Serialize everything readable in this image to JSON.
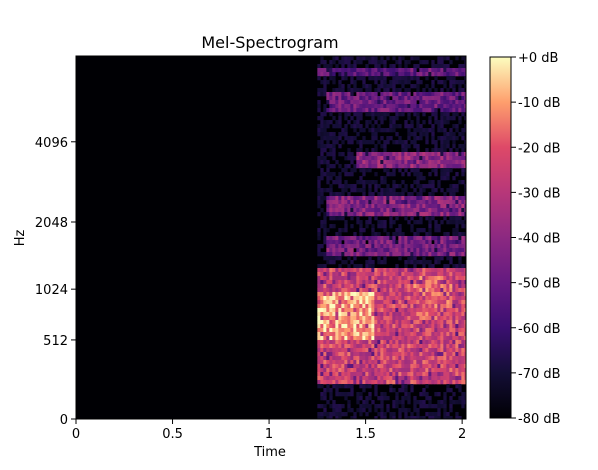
{
  "chart_data": {
    "type": "heatmap",
    "title": "Mel-Spectrogram",
    "xlabel": "Time",
    "ylabel": "Hz",
    "x_ticks": [
      {
        "value": 0,
        "label": "0"
      },
      {
        "value": 0.5,
        "label": "0.5"
      },
      {
        "value": 1,
        "label": "1"
      },
      {
        "value": 1.5,
        "label": "1.5"
      },
      {
        "value": 2,
        "label": "2"
      }
    ],
    "y_ticks": [
      {
        "value": 0,
        "label": "0"
      },
      {
        "value": 512,
        "label": "512"
      },
      {
        "value": 1024,
        "label": "1024"
      },
      {
        "value": 2048,
        "label": "2048"
      },
      {
        "value": 4096,
        "label": "4096"
      }
    ],
    "xlim": [
      0,
      2.02
    ],
    "y_scale": "mel",
    "ylim": [
      0,
      8000
    ],
    "grid": false,
    "colormap": "magma",
    "colorbar": {
      "range_db": [
        -80,
        0
      ],
      "ticks": [
        {
          "value": 0,
          "label": "+0 dB"
        },
        {
          "value": -10,
          "label": "-10 dB"
        },
        {
          "value": -20,
          "label": "-20 dB"
        },
        {
          "value": -30,
          "label": "-30 dB"
        },
        {
          "value": -40,
          "label": "-40 dB"
        },
        {
          "value": -50,
          "label": "-50 dB"
        },
        {
          "value": -60,
          "label": "-60 dB"
        },
        {
          "value": -70,
          "label": "-70 dB"
        },
        {
          "value": -80,
          "label": "-80 dB"
        }
      ]
    },
    "silence_until_s": 1.25,
    "energy_regions": [
      {
        "name": "dense low-frequency band",
        "t": [
          1.25,
          2.02
        ],
        "hz": [
          200,
          1300
        ],
        "db": -25
      },
      {
        "name": "hot spot",
        "t": [
          1.25,
          1.55
        ],
        "hz": [
          500,
          1000
        ],
        "db": -8
      },
      {
        "name": "hot spot",
        "t": [
          1.75,
          1.95
        ],
        "hz": [
          700,
          1200
        ],
        "db": -20
      },
      {
        "name": "harmonic",
        "t": [
          1.3,
          2.02
        ],
        "hz": [
          1500,
          1800
        ],
        "db": -45
      },
      {
        "name": "harmonic",
        "t": [
          1.3,
          2.02
        ],
        "hz": [
          2200,
          2600
        ],
        "db": -42
      },
      {
        "name": "harmonic",
        "t": [
          1.45,
          2.02
        ],
        "hz": [
          3300,
          3800
        ],
        "db": -40
      },
      {
        "name": "harmonic",
        "t": [
          1.3,
          2.02
        ],
        "hz": [
          5200,
          6000
        ],
        "db": -48
      },
      {
        "name": "harmonic",
        "t": [
          1.25,
          2.02
        ],
        "hz": [
          6800,
          7300
        ],
        "db": -50
      }
    ]
  }
}
